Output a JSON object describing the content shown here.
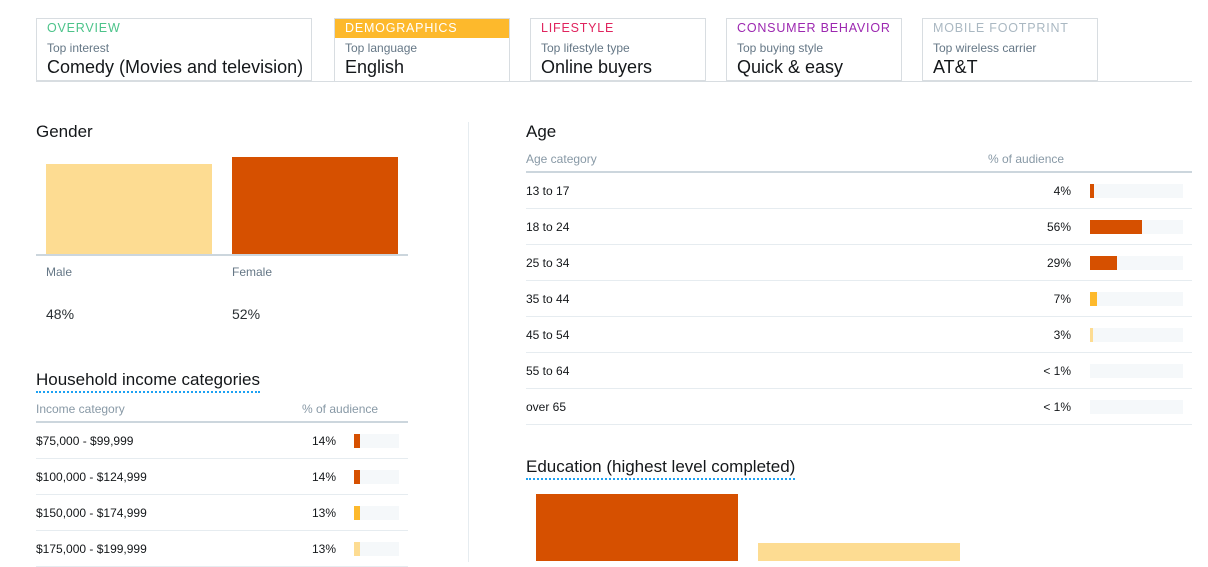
{
  "colors": {
    "orange": "#d65000",
    "yellow": "#fdb92c",
    "pale": "#fddc92",
    "track": "#f5f8fa"
  },
  "tabs": [
    {
      "head": "Overview",
      "sub": "Top interest",
      "value": "Comedy (Movies and television)",
      "color": "#4cc38a",
      "active": false
    },
    {
      "head": "Demographics",
      "sub": "Top language",
      "value": "English",
      "color": "#fdb92c",
      "active": true
    },
    {
      "head": "Lifestyle",
      "sub": "Top lifestyle type",
      "value": "Online buyers",
      "color": "#e0245e",
      "active": false
    },
    {
      "head": "Consumer behavior",
      "sub": "Top buying style",
      "value": "Quick & easy",
      "color": "#9c27b0",
      "active": false
    },
    {
      "head": "Mobile footprint",
      "sub": "Top wireless carrier",
      "value": "AT&T",
      "color": "#aab8c2",
      "active": false
    }
  ],
  "gender": {
    "title": "Gender",
    "items": [
      {
        "label": "Male",
        "pct_text": "48%",
        "value": 48,
        "color": "#fddc92"
      },
      {
        "label": "Female",
        "pct_text": "52%",
        "value": 52,
        "color": "#d65000"
      }
    ]
  },
  "income": {
    "title": "Household income categories",
    "col_category": "Income category",
    "col_pct": "% of audience",
    "rows": [
      {
        "category": "$75,000 - $99,999",
        "pct_text": "14%",
        "value": 14,
        "color": "#d65000"
      },
      {
        "category": "$100,000 - $124,999",
        "pct_text": "14%",
        "value": 14,
        "color": "#d65000"
      },
      {
        "category": "$150,000 - $174,999",
        "pct_text": "13%",
        "value": 13,
        "color": "#fdb92c"
      },
      {
        "category": "$175,000 - $199,999",
        "pct_text": "13%",
        "value": 13,
        "color": "#fddc92"
      }
    ]
  },
  "age": {
    "title": "Age",
    "col_category": "Age category",
    "col_pct": "% of audience",
    "rows": [
      {
        "category": "13 to 17",
        "pct_text": "4%",
        "value": 4,
        "color": "#d65000"
      },
      {
        "category": "18 to 24",
        "pct_text": "56%",
        "value": 56,
        "color": "#d65000"
      },
      {
        "category": "25 to 34",
        "pct_text": "29%",
        "value": 29,
        "color": "#d65000"
      },
      {
        "category": "35 to 44",
        "pct_text": "7%",
        "value": 7,
        "color": "#fdb92c"
      },
      {
        "category": "45 to 54",
        "pct_text": "3%",
        "value": 3,
        "color": "#fddc92"
      },
      {
        "category": "55 to 64",
        "pct_text": "< 1%",
        "value": 0.5,
        "color": "#fddc92"
      },
      {
        "category": "over 65",
        "pct_text": "< 1%",
        "value": 0.5,
        "color": "#fddc92"
      }
    ]
  },
  "education": {
    "title": "Education (highest level completed)",
    "bars": [
      {
        "value": 60,
        "color": "#d65000"
      },
      {
        "value": 16,
        "color": "#fddc92"
      }
    ]
  }
}
